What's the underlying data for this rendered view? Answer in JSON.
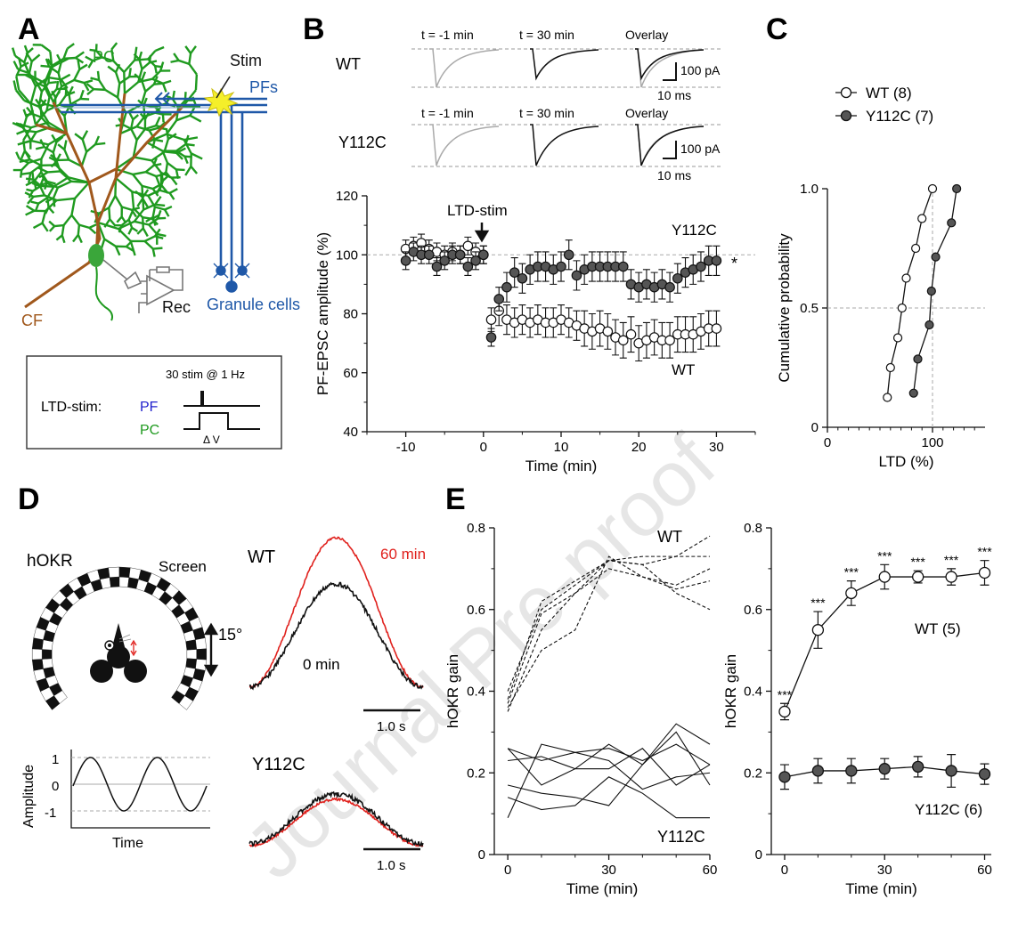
{
  "panel_letters": {
    "A": "A",
    "B": "B",
    "C": "C",
    "D": "D",
    "E": "E"
  },
  "watermark": "Journal Pre-proof",
  "colors": {
    "green": "#1f9a1f",
    "brown": "#a0581c",
    "blue": "#1f58a8",
    "red": "#e0211d",
    "gray": "#999999",
    "dark_fill": "#555555"
  },
  "panel_a": {
    "labels": {
      "pc": "PC",
      "stim": "Stim",
      "pfs": "PFs",
      "cf": "CF",
      "rec": "Rec",
      "granule": "Granule cells"
    },
    "box": {
      "title": "LTD-stim:",
      "protocol": "30 stim @ 1 Hz",
      "pf": "PF",
      "pc": "PC",
      "dv": "Δ V"
    },
    "icons": [
      "purkinje-cell-dendrite-icon",
      "granule-cell-icon",
      "amplifier-icon",
      "stim-star-icon"
    ]
  },
  "panel_b": {
    "trace_headers": [
      "t = -1 min",
      "t = 30 min",
      "Overlay"
    ],
    "rows": [
      "WT",
      "Y112C"
    ],
    "scale_y": "100 pA",
    "scale_x": "10 ms",
    "annotation": "LTD-stim",
    "sig": "*",
    "label_wt": "WT",
    "label_y112c": "Y112C"
  },
  "panel_c": {
    "legend": [
      {
        "name": "WT (8)",
        "fill": "open"
      },
      {
        "name": "Y112C (7)",
        "fill": "filled"
      }
    ]
  },
  "panel_d": {
    "labels": {
      "hokr": "hOKR",
      "screen": "Screen",
      "angle": "15°",
      "wt": "WT",
      "y112c": "Y112C",
      "t60": "60 min",
      "t0": "0 min",
      "scale": "1.0 s",
      "scale2": "1.0 s"
    },
    "sine_plot": {
      "ylabel": "Amplitude",
      "xlabel": "Time",
      "ticks": [
        "1",
        "0",
        "-1"
      ]
    }
  },
  "panel_e": {
    "left_labels": {
      "wt": "WT",
      "y112c": "Y112C"
    },
    "right_labels": {
      "wt": "WT (5)",
      "y112c": "Y112C (6)"
    },
    "sig": "***"
  },
  "chart_data": [
    {
      "id": "B",
      "type": "scatter",
      "xlabel": "Time (min)",
      "ylabel": "PF-EPSC amplitude (%)",
      "xlim": [
        -15,
        35
      ],
      "ylim": [
        40,
        120
      ],
      "xticks": [
        "-10",
        "0",
        "10",
        "20",
        "30"
      ],
      "yticks": [
        "40",
        "60",
        "80",
        "100",
        "120"
      ],
      "reference_line": 100,
      "series": [
        {
          "name": "WT",
          "fill": "open",
          "x": [
            -10,
            -9,
            -8,
            -7,
            -6,
            -5,
            -4,
            -3,
            -2,
            -1,
            0,
            1,
            2,
            3,
            4,
            5,
            6,
            7,
            8,
            9,
            10,
            11,
            12,
            13,
            14,
            15,
            16,
            17,
            18,
            19,
            20,
            21,
            22,
            23,
            24,
            25,
            26,
            27,
            28,
            29,
            30
          ],
          "y": [
            102,
            103,
            104,
            102,
            101,
            100,
            101,
            100,
            103,
            101,
            100,
            78,
            81,
            78,
            77,
            78,
            77,
            78,
            77,
            77,
            78,
            77,
            76,
            75,
            74,
            75,
            74,
            72,
            71,
            73,
            70,
            71,
            72,
            71,
            71,
            73,
            73,
            73,
            74,
            75,
            75
          ],
          "err": [
            3,
            3,
            3,
            3,
            3,
            3,
            3,
            3,
            3,
            3,
            3,
            4,
            5,
            5,
            5,
            5,
            5,
            5,
            5,
            5,
            5,
            5,
            5,
            6,
            6,
            6,
            6,
            6,
            6,
            6,
            6,
            6,
            6,
            6,
            6,
            6,
            6,
            6,
            6,
            6,
            6
          ]
        },
        {
          "name": "Y112C",
          "fill": "filled",
          "x": [
            -10,
            -9,
            -8,
            -7,
            -6,
            -5,
            -4,
            -3,
            -2,
            -1,
            0,
            1,
            2,
            3,
            4,
            5,
            6,
            7,
            8,
            9,
            10,
            11,
            12,
            13,
            14,
            15,
            16,
            17,
            18,
            19,
            20,
            21,
            22,
            23,
            24,
            25,
            26,
            27,
            28,
            29,
            30
          ],
          "y": [
            98,
            101,
            100,
            100,
            96,
            98,
            100,
            100,
            96,
            98,
            100,
            72,
            85,
            89,
            94,
            92,
            95,
            96,
            96,
            95,
            96,
            100,
            93,
            95,
            96,
            96,
            96,
            96,
            96,
            90,
            89,
            90,
            89,
            90,
            89,
            92,
            94,
            95,
            96,
            98,
            98
          ],
          "err": [
            3,
            3,
            3,
            3,
            3,
            3,
            3,
            3,
            3,
            3,
            3,
            3,
            4,
            5,
            5,
            5,
            5,
            5,
            5,
            5,
            5,
            5,
            5,
            5,
            5,
            5,
            5,
            5,
            5,
            5,
            5,
            5,
            5,
            5,
            5,
            5,
            5,
            5,
            5,
            5,
            5
          ]
        }
      ]
    },
    {
      "id": "C",
      "type": "line",
      "xlabel": "LTD (%)",
      "ylabel": "Cumulative probability",
      "xlim": [
        0,
        150
      ],
      "ylim": [
        0,
        1.0
      ],
      "xticks": [
        "0",
        "100"
      ],
      "yticks": [
        "0",
        "0.5",
        "1.0"
      ],
      "ref_x": 100,
      "ref_y": 0.5,
      "series": [
        {
          "name": "WT (8)",
          "fill": "open",
          "x": [
            57,
            60,
            67,
            71,
            75,
            84,
            90,
            100
          ],
          "y": [
            0.125,
            0.25,
            0.375,
            0.5,
            0.625,
            0.75,
            0.875,
            1.0
          ]
        },
        {
          "name": "Y112C (7)",
          "fill": "filled",
          "x": [
            82,
            86,
            97,
            99,
            103,
            118,
            123
          ],
          "y": [
            0.143,
            0.286,
            0.429,
            0.571,
            0.714,
            0.857,
            1.0
          ]
        }
      ]
    },
    {
      "id": "E-left",
      "type": "line",
      "xlabel": "Time (min)",
      "ylabel": "hOKR gain",
      "xlim": [
        -4,
        60
      ],
      "ylim": [
        0,
        0.8
      ],
      "xticks": [
        "0",
        "30",
        "60"
      ],
      "yticks": [
        "0",
        "0.2",
        "0.4",
        "0.6",
        "0.8"
      ],
      "x": [
        0,
        10,
        20,
        30,
        40,
        50,
        60
      ],
      "series": [
        {
          "name": "WT",
          "dash": true,
          "values": [
            0.37,
            0.59,
            0.64,
            0.72,
            0.71,
            0.64,
            0.6
          ]
        },
        {
          "name": "WT",
          "dash": true,
          "values": [
            0.4,
            0.6,
            0.66,
            0.72,
            0.73,
            0.73,
            0.78
          ]
        },
        {
          "name": "WT",
          "dash": true,
          "values": [
            0.35,
            0.55,
            0.64,
            0.7,
            0.68,
            0.66,
            0.7
          ]
        },
        {
          "name": "WT",
          "dash": true,
          "values": [
            0.36,
            0.5,
            0.55,
            0.73,
            0.68,
            0.65,
            0.67
          ]
        },
        {
          "name": "WT",
          "dash": true,
          "values": [
            0.38,
            0.62,
            0.67,
            0.72,
            0.71,
            0.73,
            0.73
          ]
        },
        {
          "name": "Y112C",
          "dash": false,
          "values": [
            0.26,
            0.17,
            0.21,
            0.21,
            0.26,
            0.17,
            0.22
          ]
        },
        {
          "name": "Y112C",
          "dash": false,
          "values": [
            0.09,
            0.27,
            0.25,
            0.26,
            0.23,
            0.27,
            0.22
          ]
        },
        {
          "name": "Y112C",
          "dash": false,
          "values": [
            0.17,
            0.15,
            0.14,
            0.12,
            0.22,
            0.32,
            0.27
          ]
        },
        {
          "name": "Y112C",
          "dash": false,
          "values": [
            0.23,
            0.24,
            0.21,
            0.27,
            0.22,
            0.3,
            0.17
          ]
        },
        {
          "name": "Y112C",
          "dash": false,
          "values": [
            0.14,
            0.11,
            0.12,
            0.19,
            0.15,
            0.09,
            0.09
          ]
        },
        {
          "name": "Y112C",
          "dash": false,
          "values": [
            0.26,
            0.23,
            0.25,
            0.23,
            0.16,
            0.19,
            0.2
          ]
        }
      ]
    },
    {
      "id": "E-right",
      "type": "line",
      "xlabel": "Time (min)",
      "ylabel": "hOKR gain",
      "xlim": [
        -4,
        62
      ],
      "ylim": [
        0,
        0.8
      ],
      "xticks": [
        "0",
        "30",
        "60"
      ],
      "yticks": [
        "0",
        "0.2",
        "0.4",
        "0.6",
        "0.8"
      ],
      "x": [
        0,
        10,
        20,
        30,
        40,
        50,
        60
      ],
      "series": [
        {
          "name": "WT (5)",
          "fill": "open",
          "values": [
            0.35,
            0.55,
            0.64,
            0.68,
            0.68,
            0.68,
            0.69
          ],
          "err": [
            0.02,
            0.045,
            0.03,
            0.03,
            0.015,
            0.02,
            0.03
          ]
        },
        {
          "name": "Y112C (6)",
          "fill": "filled",
          "values": [
            0.19,
            0.205,
            0.205,
            0.21,
            0.215,
            0.205,
            0.197
          ],
          "err": [
            0.03,
            0.03,
            0.03,
            0.025,
            0.025,
            0.04,
            0.025
          ]
        }
      ]
    }
  ]
}
